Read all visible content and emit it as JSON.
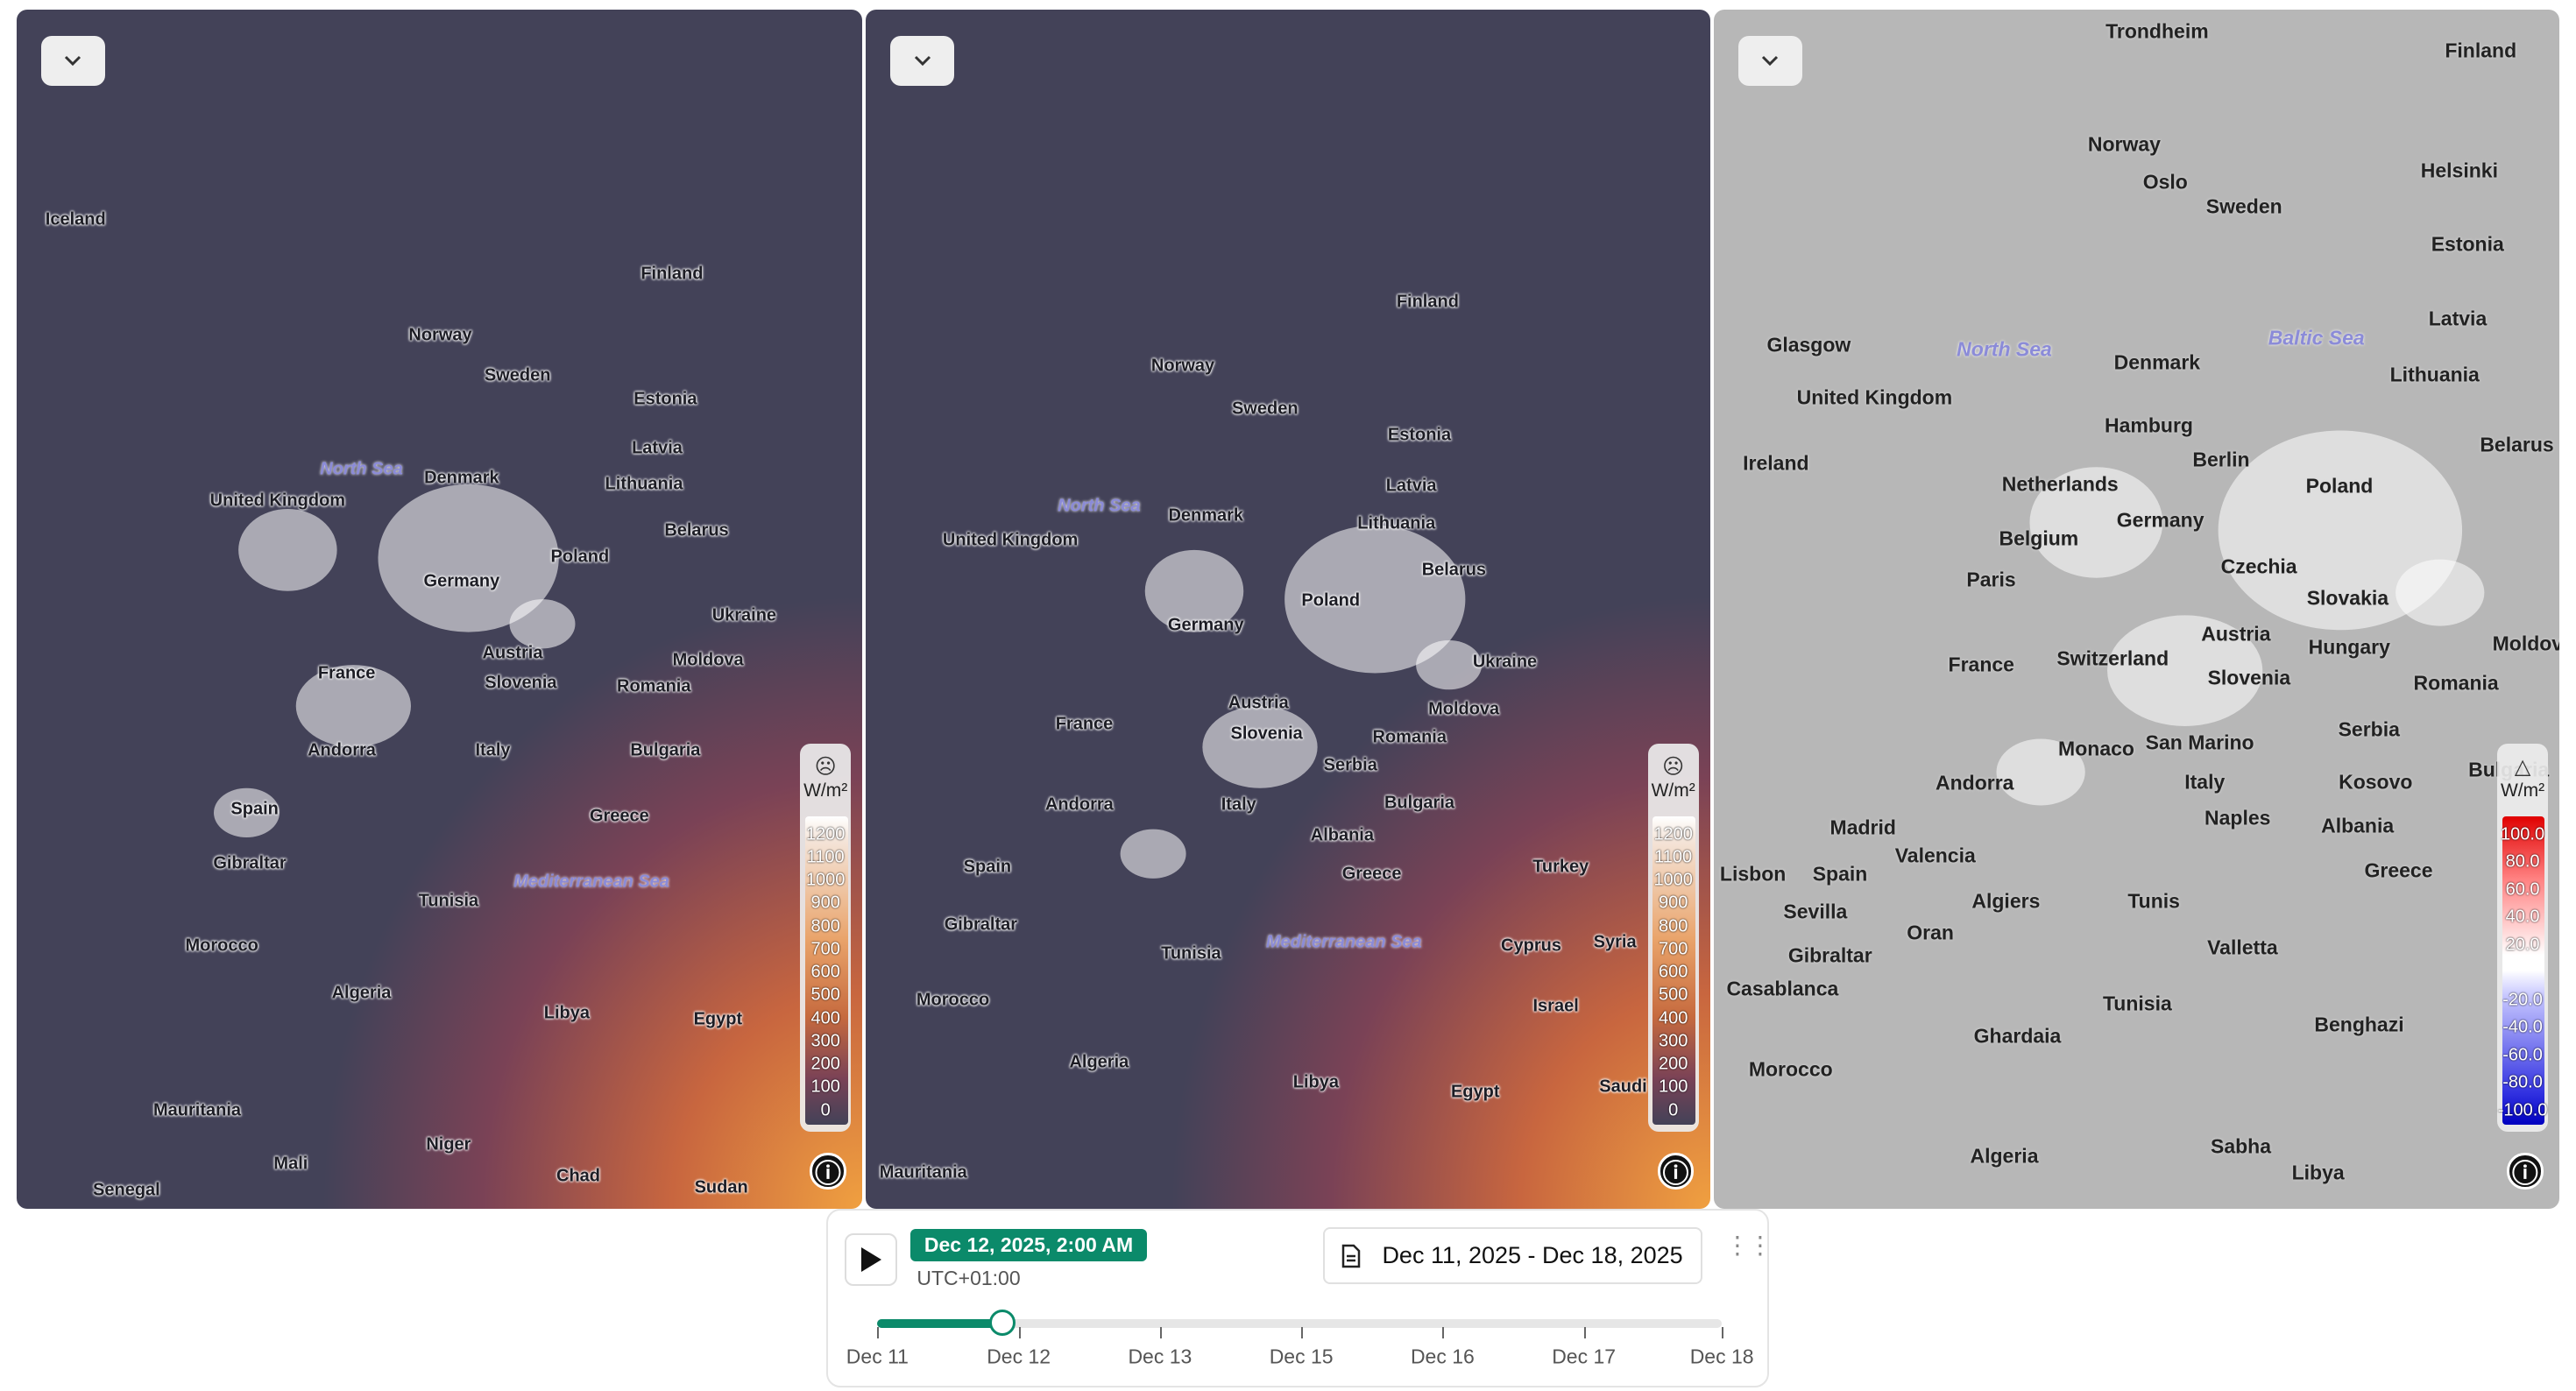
{
  "panels": [
    {
      "labels": [
        "Iceland",
        "Norway",
        "Sweden",
        "Finland",
        "Estonia",
        "Latvia",
        "Lithuania",
        "Denmark",
        "North Sea",
        "United Kingdom",
        "Poland",
        "Belarus",
        "Germany",
        "Ukraine",
        "France",
        "Austria",
        "Romania",
        "Moldova",
        "Slovenia",
        "Italy",
        "Bulgaria",
        "Andorra",
        "Spain",
        "Greece",
        "Gibraltar",
        "Tunisia",
        "Mediterranean Sea",
        "Morocco",
        "Algeria",
        "Libya",
        "Egypt",
        "Mauritania",
        "Niger",
        "Mali",
        "Chad",
        "Sudan",
        "Senegal"
      ],
      "legend": {
        "unit": "W/m²",
        "values": [
          "1200",
          "1100",
          "1000",
          "900",
          "800",
          "700",
          "600",
          "500",
          "400",
          "300",
          "200",
          "100",
          "0"
        ]
      }
    },
    {
      "labels": [
        "Finland",
        "Norway",
        "Sweden",
        "Estonia",
        "Latvia",
        "Lithuania",
        "Denmark",
        "North Sea",
        "United Kingdom",
        "Poland",
        "Belarus",
        "Germany",
        "Ukraine",
        "France",
        "Austria",
        "Slovenia",
        "Moldova",
        "Romania",
        "Serbia",
        "Italy",
        "Bulgaria",
        "Andorra",
        "Spain",
        "Albania",
        "Greece",
        "Turkey",
        "Gibraltar",
        "Tunisia",
        "Mediterranean Sea",
        "Cyprus",
        "Syria",
        "Morocco",
        "Algeria",
        "Libya",
        "Egypt",
        "Israel",
        "Saudi",
        "Mauritania"
      ],
      "legend": {
        "unit": "W/m²",
        "values": [
          "1200",
          "1100",
          "1000",
          "900",
          "800",
          "700",
          "600",
          "500",
          "400",
          "300",
          "200",
          "100",
          "0"
        ]
      }
    },
    {
      "labels": [
        "Trondheim",
        "Finland",
        "Norway",
        "Oslo",
        "Sweden",
        "Helsinki",
        "Estonia",
        "Latvia",
        "Glasgow",
        "North Sea",
        "Baltic Sea",
        "Denmark",
        "Lithuania",
        "United Kingdom",
        "Ireland",
        "Hamburg",
        "Berlin",
        "Poland",
        "Belarus",
        "Netherlands",
        "Belgium",
        "Germany",
        "Paris",
        "Czechia",
        "Slovakia",
        "France",
        "Switzerland",
        "Austria",
        "Hungary",
        "Romania",
        "Slovenia",
        "Moldova",
        "Monaco",
        "San Marino",
        "Serbia",
        "Italy",
        "Andorra",
        "Kosovo",
        "Bulgaria",
        "Madrid",
        "Valencia",
        "Spain",
        "Lisbon",
        "Naples",
        "Albania",
        "Greece",
        "Sevilla",
        "Algiers",
        "Tunis",
        "Gibraltar",
        "Oran",
        "Valletta",
        "Casablanca",
        "Tunisia",
        "Ghardaia",
        "Benghazi",
        "Morocco",
        "Algeria",
        "Sabha",
        "Libya"
      ],
      "legend": {
        "unit": "W/m²",
        "values": [
          "100.0",
          "80.0",
          "60.0",
          "40.0",
          "20.0",
          "-20.0",
          "-40.0",
          "-60.0",
          "-80.0",
          "-100.0"
        ]
      }
    }
  ],
  "timeline": {
    "current": "Dec 12, 2025, 2:00 AM",
    "timezone": "UTC+01:00",
    "range": "Dec 11, 2025 - Dec 18, 2025",
    "ticks": [
      "Dec 11",
      "Dec 12",
      "Dec 13",
      "Dec 15",
      "Dec 16",
      "Dec 17",
      "Dec 18"
    ]
  }
}
